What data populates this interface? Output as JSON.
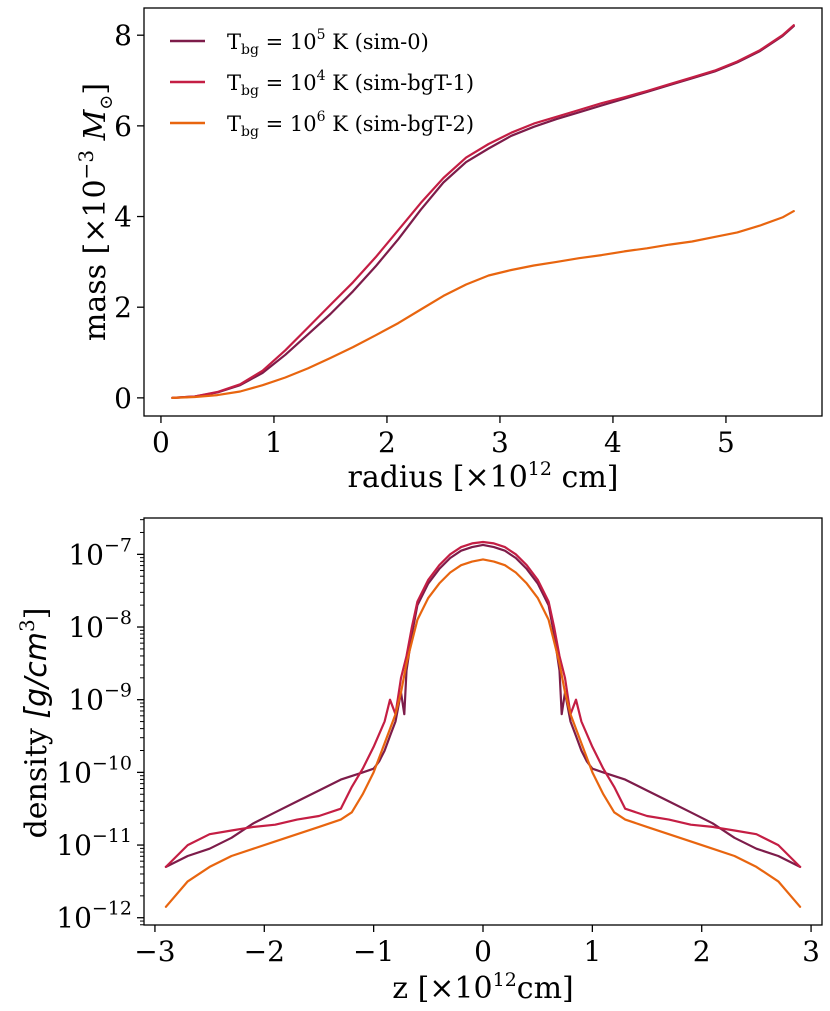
{
  "chart_data": [
    {
      "type": "line",
      "xlabel": "radius [×10^12 cm]",
      "ylabel": "mass [×10^−3 M⊙]",
      "xlim": [
        -0.15,
        5.85
      ],
      "ylim": [
        -0.4,
        8.6
      ],
      "xticks": [
        0,
        1,
        2,
        3,
        4,
        5
      ],
      "yticks": [
        0,
        2,
        4,
        6,
        8
      ],
      "grid": false,
      "legend_position": "top-left",
      "series": [
        {
          "name": "T_bg = 10^5 K (sim-0)",
          "color": "#7d1c4a",
          "x": [
            0.1,
            0.3,
            0.5,
            0.7,
            0.9,
            1.1,
            1.3,
            1.5,
            1.7,
            1.9,
            2.1,
            2.3,
            2.5,
            2.7,
            2.9,
            3.1,
            3.3,
            3.5,
            3.7,
            3.9,
            4.1,
            4.3,
            4.5,
            4.7,
            4.9,
            5.1,
            5.3,
            5.5,
            5.6
          ],
          "y": [
            0.0,
            0.03,
            0.12,
            0.28,
            0.55,
            0.95,
            1.4,
            1.85,
            2.35,
            2.9,
            3.5,
            4.15,
            4.75,
            5.2,
            5.5,
            5.78,
            5.98,
            6.15,
            6.3,
            6.45,
            6.6,
            6.75,
            6.9,
            7.05,
            7.2,
            7.4,
            7.65,
            7.98,
            8.2
          ]
        },
        {
          "name": "T_bg = 10^4 K (sim-bgT-1)",
          "color": "#c41e44",
          "x": [
            0.1,
            0.3,
            0.5,
            0.7,
            0.9,
            1.1,
            1.3,
            1.5,
            1.7,
            1.9,
            2.1,
            2.3,
            2.5,
            2.7,
            2.9,
            3.1,
            3.3,
            3.5,
            3.7,
            3.9,
            4.1,
            4.3,
            4.5,
            4.7,
            4.9,
            5.1,
            5.3,
            5.5,
            5.6
          ],
          "y": [
            0.0,
            0.03,
            0.13,
            0.3,
            0.6,
            1.05,
            1.55,
            2.05,
            2.55,
            3.1,
            3.7,
            4.3,
            4.85,
            5.3,
            5.6,
            5.85,
            6.05,
            6.2,
            6.35,
            6.5,
            6.63,
            6.77,
            6.92,
            7.07,
            7.22,
            7.42,
            7.67,
            8.0,
            8.22
          ]
        },
        {
          "name": "T_bg = 10^6 K (sim-bgT-2)",
          "color": "#e8650f",
          "x": [
            0.1,
            0.3,
            0.5,
            0.7,
            0.9,
            1.1,
            1.3,
            1.5,
            1.7,
            1.9,
            2.1,
            2.3,
            2.5,
            2.7,
            2.9,
            3.1,
            3.3,
            3.5,
            3.7,
            3.9,
            4.1,
            4.3,
            4.5,
            4.7,
            4.9,
            5.1,
            5.3,
            5.5,
            5.6
          ],
          "y": [
            0.0,
            0.02,
            0.06,
            0.14,
            0.28,
            0.45,
            0.65,
            0.88,
            1.12,
            1.38,
            1.65,
            1.95,
            2.25,
            2.5,
            2.7,
            2.82,
            2.92,
            3.0,
            3.08,
            3.15,
            3.23,
            3.3,
            3.38,
            3.45,
            3.55,
            3.65,
            3.8,
            3.98,
            4.12
          ]
        }
      ]
    },
    {
      "type": "line",
      "xlabel": "z [×10^12cm]",
      "ylabel": "density [g/cm^3]",
      "yscale": "log",
      "xlim": [
        -3.1,
        3.1
      ],
      "ylim_log10": [
        -12.1,
        -6.5
      ],
      "xticks": [
        -3,
        -2,
        -1,
        0,
        1,
        2,
        3
      ],
      "yticks_log10": [
        -12,
        -11,
        -10,
        -9,
        -8,
        -7
      ],
      "grid": false,
      "series": [
        {
          "name": "T_bg = 10^5 K (sim-0)",
          "color": "#7d1c4a",
          "x": [
            -2.9,
            -2.7,
            -2.5,
            -2.3,
            -2.1,
            -1.9,
            -1.7,
            -1.5,
            -1.3,
            -1.1,
            -1.0,
            -0.95,
            -0.9,
            -0.85,
            -0.8,
            -0.75,
            -0.72,
            -0.7,
            -0.65,
            -0.6,
            -0.5,
            -0.4,
            -0.3,
            -0.2,
            -0.1,
            0.0,
            0.1,
            0.2,
            0.3,
            0.4,
            0.5,
            0.6,
            0.65,
            0.7,
            0.72,
            0.75,
            0.8,
            0.85,
            0.9,
            0.95,
            1.0,
            1.1,
            1.3,
            1.5,
            1.7,
            1.9,
            2.1,
            2.3,
            2.5,
            2.7,
            2.9
          ],
          "y": [
            -11.3,
            -11.15,
            -11.05,
            -10.9,
            -10.7,
            -10.55,
            -10.4,
            -10.25,
            -10.1,
            -10.0,
            -9.95,
            -9.85,
            -9.7,
            -9.5,
            -9.3,
            -8.9,
            -9.2,
            -8.6,
            -8.1,
            -7.7,
            -7.4,
            -7.2,
            -7.05,
            -6.95,
            -6.9,
            -6.87,
            -6.9,
            -6.95,
            -7.05,
            -7.2,
            -7.4,
            -7.7,
            -8.1,
            -8.6,
            -9.2,
            -8.9,
            -9.3,
            -9.5,
            -9.7,
            -9.85,
            -9.95,
            -10.0,
            -10.1,
            -10.25,
            -10.4,
            -10.55,
            -10.7,
            -10.9,
            -11.05,
            -11.15,
            -11.3
          ]
        },
        {
          "name": "T_bg = 10^4 K (sim-bgT-1)",
          "color": "#c41e44",
          "x": [
            -2.9,
            -2.7,
            -2.5,
            -2.3,
            -2.1,
            -1.9,
            -1.7,
            -1.5,
            -1.3,
            -1.2,
            -1.1,
            -1.0,
            -0.9,
            -0.85,
            -0.8,
            -0.75,
            -0.7,
            -0.65,
            -0.6,
            -0.5,
            -0.4,
            -0.3,
            -0.2,
            -0.1,
            0.0,
            0.1,
            0.2,
            0.3,
            0.4,
            0.5,
            0.6,
            0.65,
            0.7,
            0.75,
            0.8,
            0.85,
            0.9,
            1.0,
            1.1,
            1.2,
            1.3,
            1.5,
            1.7,
            1.9,
            2.1,
            2.3,
            2.5,
            2.7,
            2.9
          ],
          "y": [
            -11.3,
            -11.0,
            -10.85,
            -10.8,
            -10.75,
            -10.72,
            -10.65,
            -10.6,
            -10.5,
            -10.2,
            -9.95,
            -9.65,
            -9.3,
            -9.0,
            -9.2,
            -8.7,
            -8.4,
            -8.0,
            -7.65,
            -7.35,
            -7.15,
            -7.0,
            -6.9,
            -6.85,
            -6.83,
            -6.85,
            -6.9,
            -7.0,
            -7.15,
            -7.35,
            -7.65,
            -8.0,
            -8.4,
            -8.7,
            -9.2,
            -9.0,
            -9.3,
            -9.65,
            -9.95,
            -10.2,
            -10.5,
            -10.6,
            -10.65,
            -10.72,
            -10.75,
            -10.8,
            -10.85,
            -11.0,
            -11.3
          ]
        },
        {
          "name": "T_bg = 10^6 K (sim-bgT-2)",
          "color": "#e8650f",
          "x": [
            -2.9,
            -2.7,
            -2.5,
            -2.3,
            -2.1,
            -1.9,
            -1.7,
            -1.5,
            -1.3,
            -1.2,
            -1.1,
            -1.0,
            -0.9,
            -0.8,
            -0.75,
            -0.7,
            -0.65,
            -0.6,
            -0.5,
            -0.4,
            -0.3,
            -0.2,
            -0.1,
            0.0,
            0.1,
            0.2,
            0.3,
            0.4,
            0.5,
            0.6,
            0.65,
            0.7,
            0.75,
            0.8,
            0.9,
            1.0,
            1.1,
            1.2,
            1.3,
            1.5,
            1.7,
            1.9,
            2.1,
            2.3,
            2.5,
            2.7,
            2.9
          ],
          "y": [
            -11.85,
            -11.5,
            -11.3,
            -11.15,
            -11.05,
            -10.95,
            -10.85,
            -10.75,
            -10.65,
            -10.55,
            -10.3,
            -10.0,
            -9.6,
            -9.2,
            -8.9,
            -8.5,
            -8.2,
            -7.9,
            -7.6,
            -7.4,
            -7.25,
            -7.15,
            -7.1,
            -7.07,
            -7.1,
            -7.15,
            -7.25,
            -7.4,
            -7.6,
            -7.9,
            -8.2,
            -8.5,
            -8.9,
            -9.2,
            -9.6,
            -10.0,
            -10.3,
            -10.55,
            -10.65,
            -10.75,
            -10.85,
            -10.95,
            -11.05,
            -11.15,
            -11.3,
            -11.5,
            -11.85
          ]
        }
      ]
    }
  ]
}
